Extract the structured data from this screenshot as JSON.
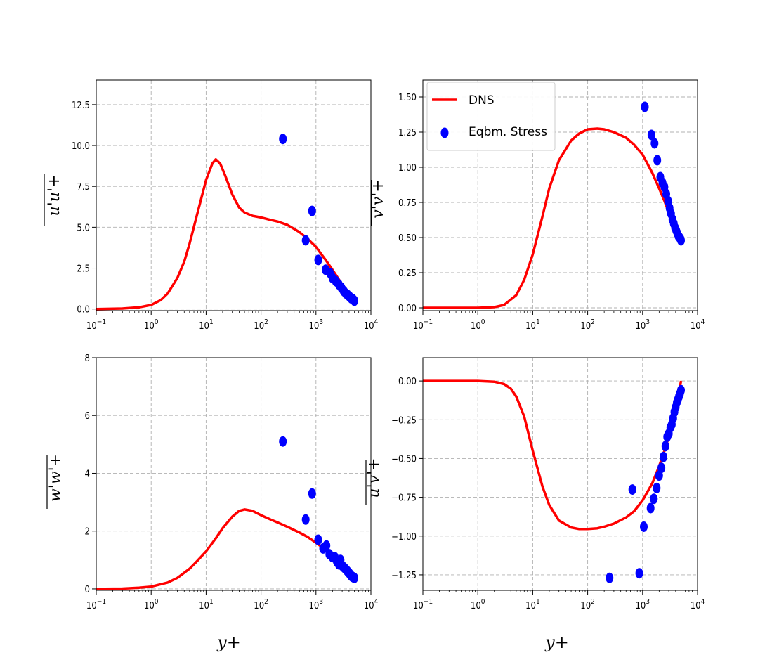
{
  "chart_data": [
    {
      "type": "line",
      "ylabel": "u'u'+",
      "xlabel": "",
      "xscale": "log",
      "xlim": [
        0.1,
        10000
      ],
      "ylim": [
        -0.1,
        14
      ],
      "yticks": [
        0.0,
        2.5,
        5.0,
        7.5,
        10.0,
        12.5
      ],
      "ytick_labels": [
        "0.0",
        "2.5",
        "5.0",
        "7.5",
        "10.0",
        "12.5"
      ],
      "xticks": [
        0.1,
        1,
        10,
        100,
        1000,
        10000
      ],
      "xtick_labels": [
        "10^-1",
        "10^0",
        "10^1",
        "10^2",
        "10^3",
        "10^4"
      ],
      "grid": true,
      "series": [
        {
          "role": "line",
          "x": [
            0.1,
            0.3,
            0.6,
            1,
            1.5,
            2,
            3,
            4,
            5,
            7,
            10,
            13,
            15,
            18,
            22,
            30,
            40,
            50,
            70,
            100,
            150,
            200,
            300,
            500,
            700,
            1000,
            1500,
            2000,
            3000,
            4000,
            5000
          ],
          "y": [
            0.0,
            0.03,
            0.1,
            0.25,
            0.55,
            0.95,
            1.9,
            2.9,
            4.0,
            5.9,
            7.9,
            8.9,
            9.15,
            8.9,
            8.2,
            7.0,
            6.2,
            5.9,
            5.7,
            5.6,
            5.45,
            5.35,
            5.15,
            4.7,
            4.3,
            3.8,
            3.0,
            2.4,
            1.5,
            0.9,
            0.55
          ]
        },
        {
          "role": "points",
          "x": [
            250,
            650,
            850,
            1100,
            1500,
            1800,
            2000,
            2300,
            2600,
            2900,
            3200,
            3500,
            3800,
            4100,
            4400,
            4700,
            5000
          ],
          "y": [
            10.4,
            4.2,
            6.0,
            3.0,
            2.4,
            2.2,
            1.9,
            1.7,
            1.5,
            1.3,
            1.1,
            0.95,
            0.85,
            0.75,
            0.65,
            0.6,
            0.5
          ]
        }
      ]
    },
    {
      "type": "line",
      "ylabel": "v'v'+",
      "xlabel": "",
      "xscale": "log",
      "xlim": [
        0.1,
        10000
      ],
      "ylim": [
        -0.02,
        1.62
      ],
      "yticks": [
        0.0,
        0.25,
        0.5,
        0.75,
        1.0,
        1.25,
        1.5
      ],
      "ytick_labels": [
        "0.00",
        "0.25",
        "0.50",
        "0.75",
        "1.00",
        "1.25",
        "1.50"
      ],
      "xticks": [
        0.1,
        1,
        10,
        100,
        1000,
        10000
      ],
      "xtick_labels": [
        "10^-1",
        "10^0",
        "10^1",
        "10^2",
        "10^3",
        "10^4"
      ],
      "grid": true,
      "legend_position": "top-left",
      "series": [
        {
          "role": "line",
          "name": "DNS",
          "x": [
            0.1,
            1,
            2,
            3,
            5,
            7,
            10,
            15,
            20,
            30,
            50,
            70,
            100,
            150,
            200,
            300,
            500,
            700,
            1000,
            1500,
            2000,
            2500,
            3000,
            4000,
            5000
          ],
          "y": [
            0.0,
            0.0,
            0.005,
            0.02,
            0.09,
            0.2,
            0.38,
            0.65,
            0.85,
            1.05,
            1.19,
            1.24,
            1.27,
            1.275,
            1.27,
            1.25,
            1.21,
            1.16,
            1.09,
            0.96,
            0.85,
            0.76,
            0.68,
            0.56,
            0.48
          ]
        },
        {
          "role": "points",
          "name": "Eqbm. Stress",
          "x": [
            1100,
            1450,
            1650,
            1850,
            2100,
            2300,
            2500,
            2700,
            2900,
            3100,
            3300,
            3500,
            3700,
            3900,
            4100,
            4300,
            4500,
            4700,
            4900,
            5000
          ],
          "y": [
            1.43,
            1.23,
            1.17,
            1.05,
            0.93,
            0.89,
            0.86,
            0.81,
            0.76,
            0.71,
            0.67,
            0.63,
            0.6,
            0.57,
            0.55,
            0.53,
            0.51,
            0.5,
            0.49,
            0.48
          ]
        }
      ]
    },
    {
      "type": "line",
      "ylabel": "w'w'+",
      "xlabel": "y+",
      "xscale": "log",
      "xlim": [
        0.1,
        10000
      ],
      "ylim": [
        -0.05,
        8
      ],
      "yticks": [
        0,
        2,
        4,
        6,
        8
      ],
      "ytick_labels": [
        "0",
        "2",
        "4",
        "6",
        "8"
      ],
      "xticks": [
        0.1,
        1,
        10,
        100,
        1000,
        10000
      ],
      "xtick_labels": [
        "10^-1",
        "10^0",
        "10^1",
        "10^2",
        "10^3",
        "10^4"
      ],
      "grid": true,
      "series": [
        {
          "role": "line",
          "x": [
            0.1,
            0.3,
            0.6,
            1,
            2,
            3,
            5,
            7,
            10,
            15,
            20,
            30,
            40,
            50,
            70,
            100,
            150,
            200,
            300,
            500,
            700,
            1000,
            1500,
            2000,
            3000,
            4000,
            5000
          ],
          "y": [
            0.0,
            0.01,
            0.04,
            0.08,
            0.22,
            0.38,
            0.7,
            0.98,
            1.3,
            1.75,
            2.1,
            2.5,
            2.7,
            2.75,
            2.7,
            2.55,
            2.4,
            2.3,
            2.15,
            1.95,
            1.8,
            1.6,
            1.35,
            1.1,
            0.8,
            0.55,
            0.4
          ]
        },
        {
          "role": "points",
          "x": [
            250,
            650,
            850,
            1100,
            1350,
            1550,
            1750,
            2000,
            2200,
            2400,
            2600,
            2800,
            3000,
            3200,
            3400,
            3600,
            3800,
            4000,
            4200,
            4400,
            4600,
            4800,
            5000
          ],
          "y": [
            5.1,
            2.4,
            3.3,
            1.7,
            1.4,
            1.5,
            1.2,
            1.1,
            1.1,
            0.95,
            0.85,
            1.0,
            0.8,
            0.75,
            0.7,
            0.65,
            0.6,
            0.55,
            0.5,
            0.45,
            0.42,
            0.4,
            0.38
          ]
        }
      ]
    },
    {
      "type": "line",
      "ylabel": "u'v'+",
      "xlabel": "y+",
      "xscale": "log",
      "xlim": [
        0.1,
        10000
      ],
      "ylim": [
        -1.35,
        0.15
      ],
      "yticks": [
        -1.25,
        -1.0,
        -0.75,
        -0.5,
        -0.25,
        0.0
      ],
      "ytick_labels": [
        "-1.25",
        "-1.00",
        "-0.75",
        "-0.50",
        "-0.25",
        "0.00"
      ],
      "xticks": [
        0.1,
        1,
        10,
        100,
        1000,
        10000
      ],
      "xtick_labels": [
        "10^-1",
        "10^0",
        "10^1",
        "10^2",
        "10^3",
        "10^4"
      ],
      "grid": true,
      "series": [
        {
          "role": "line",
          "x": [
            0.1,
            1,
            2,
            3,
            4,
            5,
            7,
            10,
            15,
            20,
            30,
            50,
            70,
            100,
            150,
            200,
            300,
            500,
            700,
            1000,
            1500,
            2000,
            2500,
            3000,
            3500,
            4000,
            4500,
            5000
          ],
          "y": [
            0.0,
            0.0,
            -0.005,
            -0.02,
            -0.05,
            -0.1,
            -0.23,
            -0.45,
            -0.68,
            -0.8,
            -0.9,
            -0.945,
            -0.955,
            -0.955,
            -0.95,
            -0.94,
            -0.92,
            -0.88,
            -0.84,
            -0.77,
            -0.66,
            -0.55,
            -0.45,
            -0.36,
            -0.27,
            -0.18,
            -0.09,
            0.0
          ]
        },
        {
          "role": "points",
          "x": [
            250,
            650,
            870,
            1050,
            1400,
            1600,
            1800,
            2000,
            2200,
            2400,
            2600,
            2800,
            3000,
            3200,
            3400,
            3600,
            3800,
            4000,
            4200,
            4400,
            4600,
            4800,
            5000
          ],
          "y": [
            -1.27,
            -0.7,
            -1.24,
            -0.94,
            -0.82,
            -0.76,
            -0.69,
            -0.61,
            -0.56,
            -0.49,
            -0.42,
            -0.36,
            -0.34,
            -0.3,
            -0.28,
            -0.24,
            -0.2,
            -0.17,
            -0.14,
            -0.12,
            -0.1,
            -0.08,
            -0.06
          ]
        }
      ]
    }
  ],
  "legend": {
    "entries": [
      "DNS",
      "Eqbm. Stress"
    ]
  },
  "colors": {
    "line": "#ff0000",
    "points": "#0000ff",
    "grid": "#b0b0b0"
  }
}
